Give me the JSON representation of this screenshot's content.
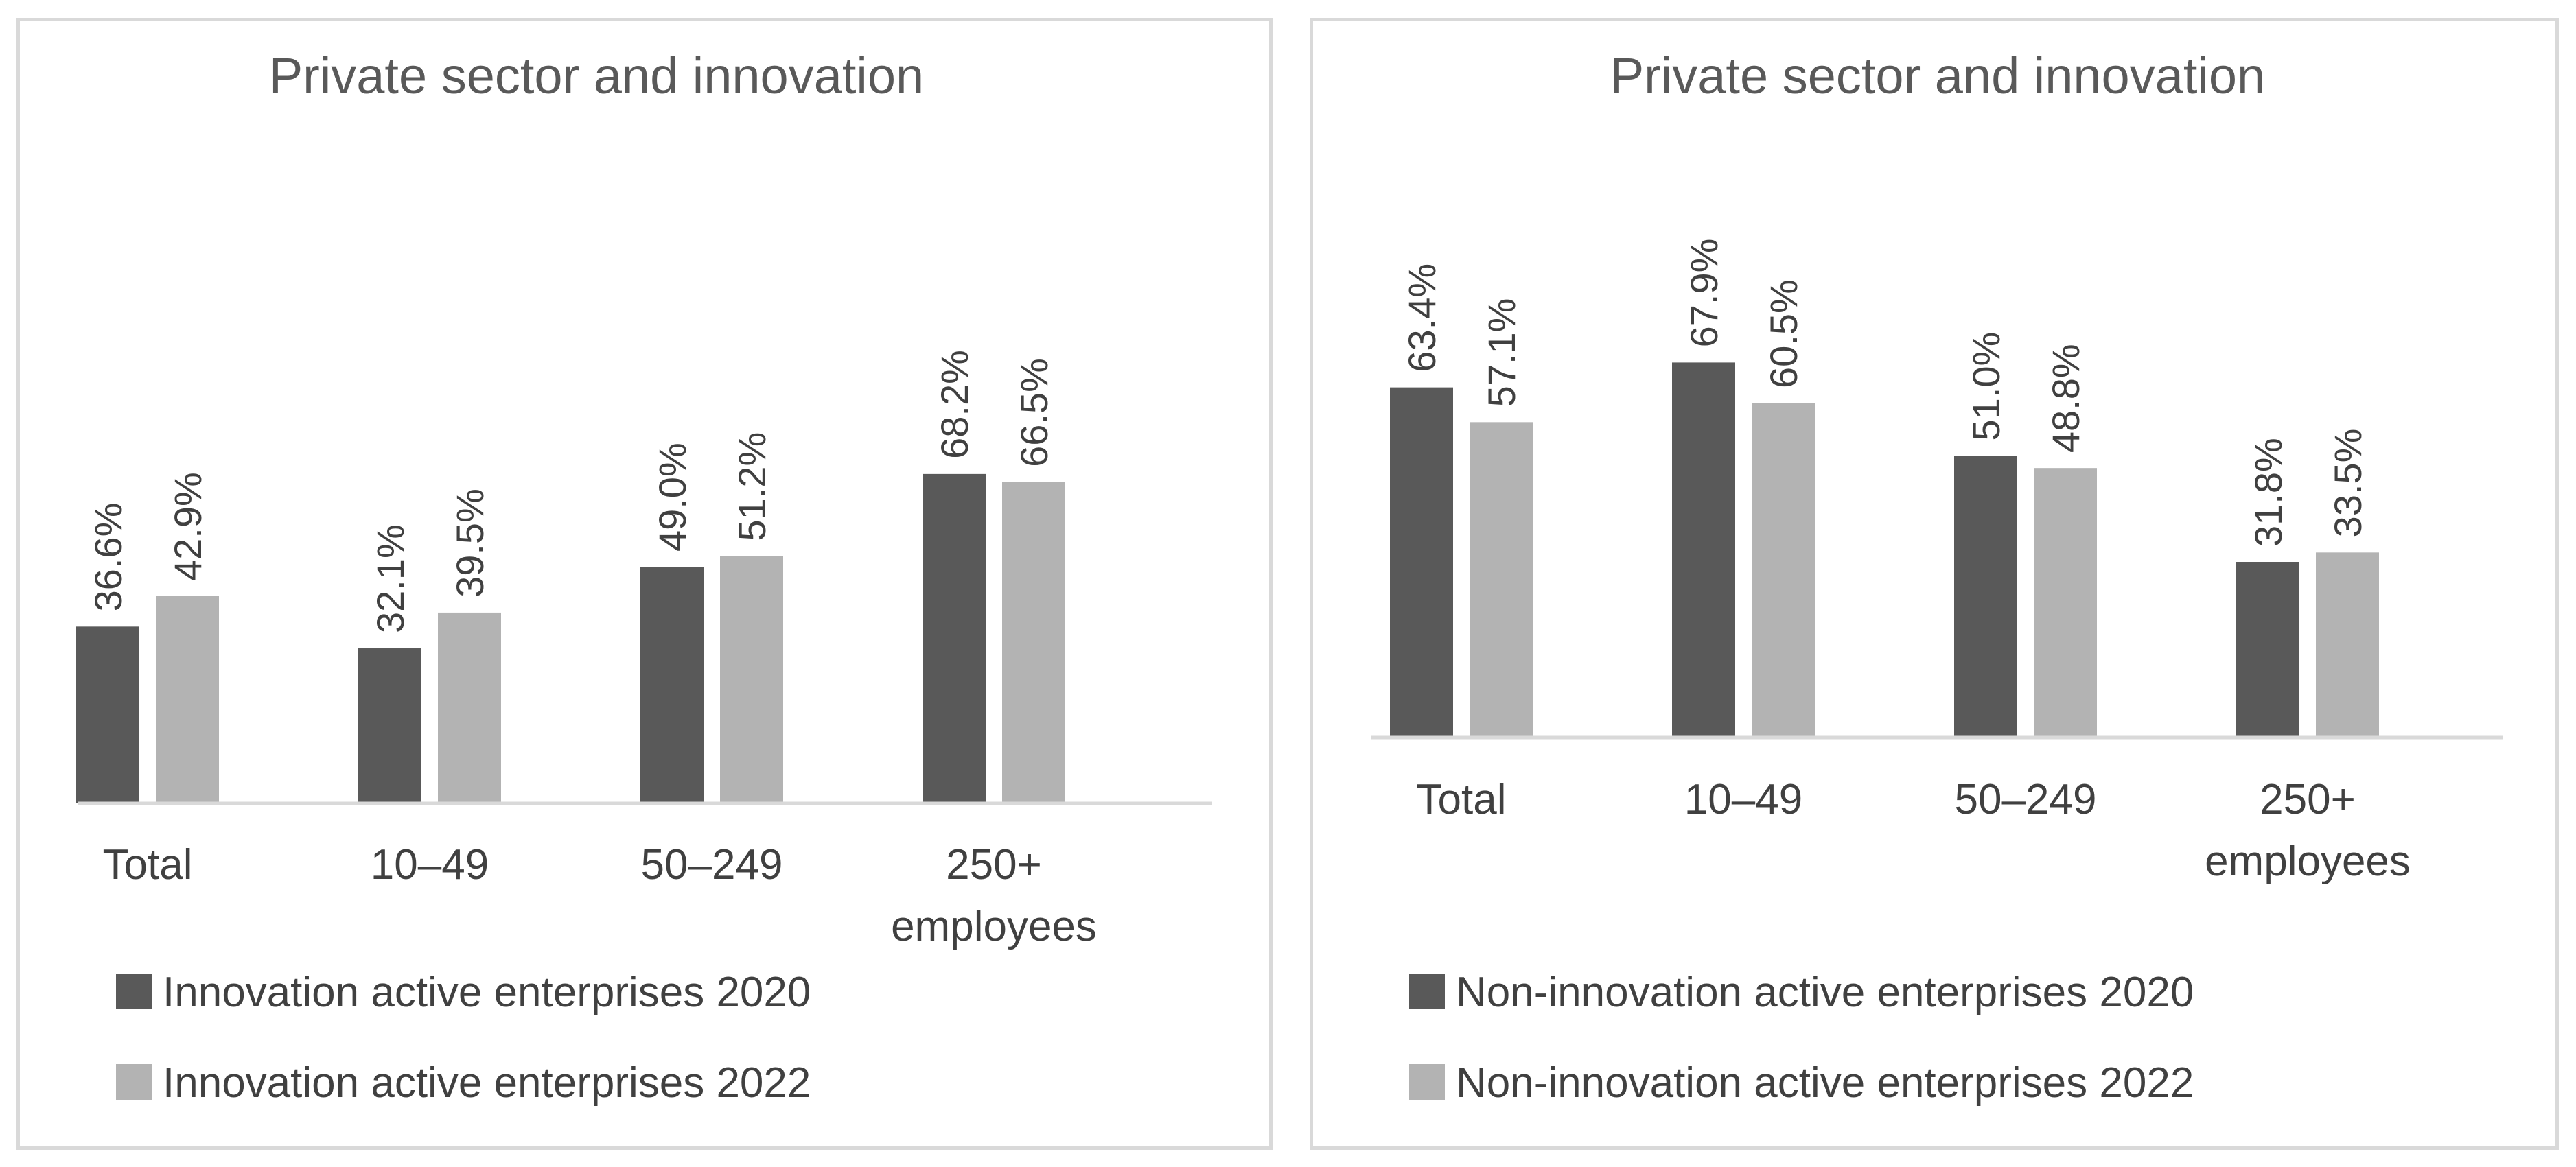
{
  "colors": {
    "series_2020": "#595959",
    "series_2022": "#b3b3b3",
    "axis": "#d9d9d9",
    "text": "#404040",
    "title": "#595959"
  },
  "chart_data": [
    {
      "type": "bar",
      "title": "Private sector and innovation",
      "categories": [
        [
          "Total"
        ],
        [
          "10–49"
        ],
        [
          "50–249"
        ],
        [
          "250+",
          "employees"
        ]
      ],
      "series": [
        {
          "name": "Innovation active enterprises 2020",
          "values": [
            36.6,
            32.1,
            49.0,
            68.2
          ],
          "labels": [
            "36.6%",
            "32.1%",
            "49.0%",
            "68.2%"
          ]
        },
        {
          "name": "Innovation active enterprises 2022",
          "values": [
            42.9,
            39.5,
            51.2,
            66.5
          ],
          "labels": [
            "42.9%",
            "39.5%",
            "51.2%",
            "66.5%"
          ]
        }
      ],
      "xlabel": "",
      "ylabel": "",
      "ylim": [
        0,
        100
      ],
      "legend": "bottom-left",
      "grid": false
    },
    {
      "type": "bar",
      "title": "Private sector and innovation",
      "categories": [
        [
          "Total"
        ],
        [
          "10–49"
        ],
        [
          "50–249"
        ],
        [
          "250+",
          "employees"
        ]
      ],
      "series": [
        {
          "name": "Non-innovation active enterprises 2020",
          "values": [
            63.4,
            67.9,
            51.0,
            31.8
          ],
          "labels": [
            "63.4%",
            "67.9%",
            "51.0%",
            "31.8%"
          ]
        },
        {
          "name": "Non-innovation active enterprises 2022",
          "values": [
            57.1,
            60.5,
            48.8,
            33.5
          ],
          "labels": [
            "57.1%",
            "60.5%",
            "48.8%",
            "33.5%"
          ]
        }
      ],
      "xlabel": "",
      "ylabel": "",
      "ylim": [
        0,
        100
      ],
      "legend": "bottom-left",
      "grid": false
    }
  ]
}
